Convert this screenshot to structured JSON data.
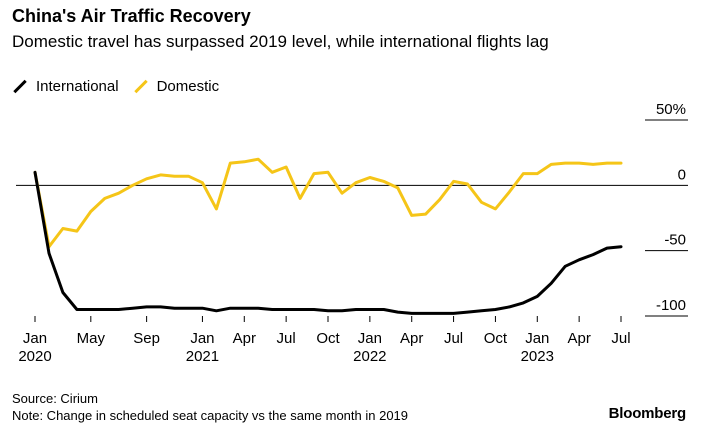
{
  "title": "China's Air Traffic Recovery",
  "subtitle": "Domestic travel has surpassed 2019 level, while international flights lag",
  "legend": {
    "international": "International",
    "domestic": "Domestic"
  },
  "source": "Source: Cirium",
  "note": "Note: Change in scheduled seat capacity vs the same month in 2019",
  "brand": "Bloomberg",
  "colors": {
    "international": "#000000",
    "domestic": "#f5c518",
    "zero_line": "#000000",
    "axis": "#000000"
  },
  "chart_data": {
    "type": "line",
    "x": [
      "2020-01",
      "2020-02",
      "2020-03",
      "2020-04",
      "2020-05",
      "2020-06",
      "2020-07",
      "2020-08",
      "2020-09",
      "2020-10",
      "2020-11",
      "2020-12",
      "2021-01",
      "2021-02",
      "2021-03",
      "2021-04",
      "2021-05",
      "2021-06",
      "2021-07",
      "2021-08",
      "2021-09",
      "2021-10",
      "2021-11",
      "2021-12",
      "2022-01",
      "2022-02",
      "2022-03",
      "2022-04",
      "2022-05",
      "2022-06",
      "2022-07",
      "2022-08",
      "2022-09",
      "2022-10",
      "2022-11",
      "2022-12",
      "2023-01",
      "2023-02",
      "2023-03",
      "2023-04",
      "2023-05",
      "2023-06",
      "2023-07"
    ],
    "series": [
      {
        "name": "International",
        "values": [
          10,
          -52,
          -82,
          -95,
          -95,
          -95,
          -95,
          -94,
          -93,
          -93,
          -94,
          -94,
          -94,
          -96,
          -94,
          -94,
          -94,
          -95,
          -95,
          -95,
          -95,
          -96,
          -96,
          -95,
          -95,
          -95,
          -97,
          -98,
          -98,
          -98,
          -98,
          -97,
          -96,
          -95,
          -93,
          -90,
          -85,
          -75,
          -62,
          -57,
          -53,
          -48,
          -47
        ]
      },
      {
        "name": "Domestic",
        "values": [
          10,
          -47,
          -33,
          -35,
          -20,
          -10,
          -6,
          0,
          5,
          8,
          7,
          7,
          2,
          -18,
          17,
          18,
          20,
          10,
          14,
          -10,
          9,
          10,
          -6,
          2,
          6,
          3,
          -2,
          -23,
          -22,
          -11,
          3,
          1,
          -13,
          -18,
          -5,
          9,
          9,
          16,
          17,
          17,
          16,
          17,
          17
        ]
      }
    ],
    "x_ticks": [
      {
        "index": 0,
        "label": "Jan",
        "year": "2020"
      },
      {
        "index": 4,
        "label": "May",
        "year": ""
      },
      {
        "index": 8,
        "label": "Sep",
        "year": ""
      },
      {
        "index": 12,
        "label": "Jan",
        "year": "2021"
      },
      {
        "index": 15,
        "label": "Apr",
        "year": ""
      },
      {
        "index": 18,
        "label": "Jul",
        "year": ""
      },
      {
        "index": 21,
        "label": "Oct",
        "year": ""
      },
      {
        "index": 24,
        "label": "Jan",
        "year": "2022"
      },
      {
        "index": 27,
        "label": "Apr",
        "year": ""
      },
      {
        "index": 30,
        "label": "Jul",
        "year": ""
      },
      {
        "index": 33,
        "label": "Oct",
        "year": ""
      },
      {
        "index": 36,
        "label": "Jan",
        "year": "2023"
      },
      {
        "index": 39,
        "label": "Apr",
        "year": ""
      },
      {
        "index": 42,
        "label": "Jul",
        "year": ""
      }
    ],
    "y_ticks": [
      {
        "value": 50,
        "label": "50%"
      },
      {
        "value": 0,
        "label": "0"
      },
      {
        "value": -50,
        "label": "-50"
      },
      {
        "value": -100,
        "label": "-100"
      }
    ],
    "ylim": [
      -100,
      50
    ],
    "grid": false,
    "legend_position": "top-left"
  }
}
